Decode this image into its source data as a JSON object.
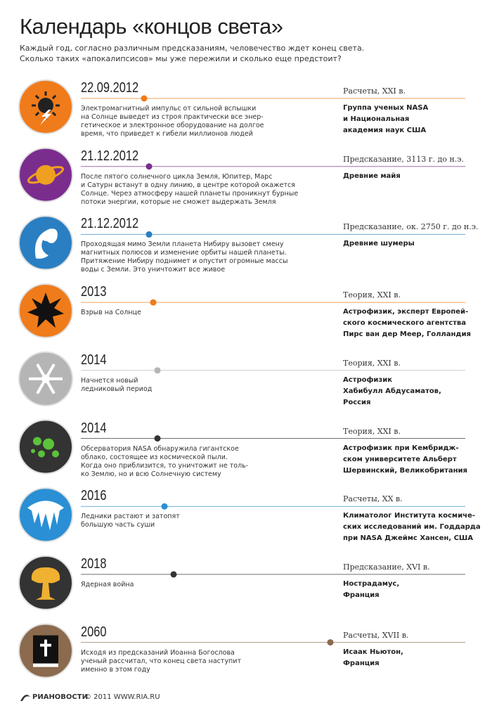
{
  "header": {
    "title": "Календарь «концов света»",
    "subtitle": [
      "Каждый год, согласно различным предсказаниям, человечество ждет конец света.",
      "Сколько таких «апокалипсисов» мы уже пережили и сколько еще предстоит?"
    ]
  },
  "items": [
    {
      "date": "22.09.2012",
      "color": "#f07b1a",
      "description": [
        "Электромагнитный импульс от сильной вспышки",
        "на Солнце выведет из строя практически все энер-",
        "гетическое и электронное оборудование на долгое",
        "время, что приведет к гибели миллионов людей"
      ],
      "source_type": "Расчеты, XXI в.",
      "source": [
        "Группа ученых NASA",
        "и Национальная",
        "академия наук США"
      ]
    },
    {
      "date": "21.12.2012",
      "color": "#7b2d8e",
      "description": [
        "После пятого солнечного цикла Земля, Юпитер, Марс",
        "и Сатурн встанут в одну линию, в центре которой окажется",
        "Солнце. Через атмосферу нашей планеты проникнут бурные",
        "потоки энергии, которые не сможет выдержать Земля"
      ],
      "source_type": "Предсказание, 3113 г. до н.э.",
      "source": [
        "Древние майя"
      ]
    },
    {
      "date": "21.12.2012",
      "color": "#2a7fc2",
      "description": [
        "Проходящая мимо Земли планета Нибиру вызовет смену",
        "магнитных полюсов и изменение орбиты нашей планеты.",
        "Притяжение Нибиру поднимет и опустит огромные массы",
        "воды с Земли. Это уничтожит все живое"
      ],
      "source_type": "Предсказание, ок. 2750 г. до н.э.",
      "source": [
        "Древние шумеры"
      ]
    },
    {
      "date": "2013",
      "color": "#f07b1a",
      "description": [
        "Взрыв на Солнце"
      ],
      "source_type": "Теория, XXI в.",
      "source": [
        "Астрофизик, эксперт Европей-",
        "ского космического агентства",
        "Пирс ван дер Меер, Голландия"
      ]
    },
    {
      "date": "2014",
      "color": "#b5b5b5",
      "description": [
        "Начнется новый",
        "ледниковый период"
      ],
      "source_type": "Теория, XXI в.",
      "source": [
        "Астрофизик",
        "Хабибулл Абдусаматов,",
        "Россия"
      ]
    },
    {
      "date": "2014",
      "color": "#333333",
      "description": [
        "Обсерватория NASA обнаружила гигантское",
        "облако, состоящее из космической пыли.",
        "Когда оно приблизится, то уничтожит не толь-",
        "ко Землю, но и всю Солнечную систему"
      ],
      "source_type": "Теория, XXI в.",
      "source": [
        "Астрофизик при Кембридж-",
        "ском университете Альберт",
        "Шервинский, Великобритания"
      ]
    },
    {
      "date": "2016",
      "color": "#2a8fd4",
      "description": [
        "Ледники растают и затопят",
        "большую часть суши"
      ],
      "source_type": "Расчеты, XX в.",
      "source": [
        "Климатолог Института космиче-",
        "ских исследований им. Годдарда",
        "при NASA Джеймс Хансен, США"
      ]
    },
    {
      "date": "2018",
      "color": "#333333",
      "description": [
        "Ядерная война"
      ],
      "source_type": "Предсказание, XVI в.",
      "source": [
        "Нострадамус,",
        "Франция"
      ]
    },
    {
      "date": "2060",
      "color": "#8b6a4e",
      "description": [
        "Исходя из предсказаний Иоанна Богослова",
        "ученый рассчитал, что конец света наступит",
        "именно в этом году"
      ],
      "source_type": "Расчеты, XVII в.",
      "source": [
        "Исаак Ньютон,",
        "Франция"
      ]
    }
  ],
  "footer": {
    "logo": "РИАНОВОСТИ",
    "text": "© 2011 WWW.RIA.RU"
  }
}
